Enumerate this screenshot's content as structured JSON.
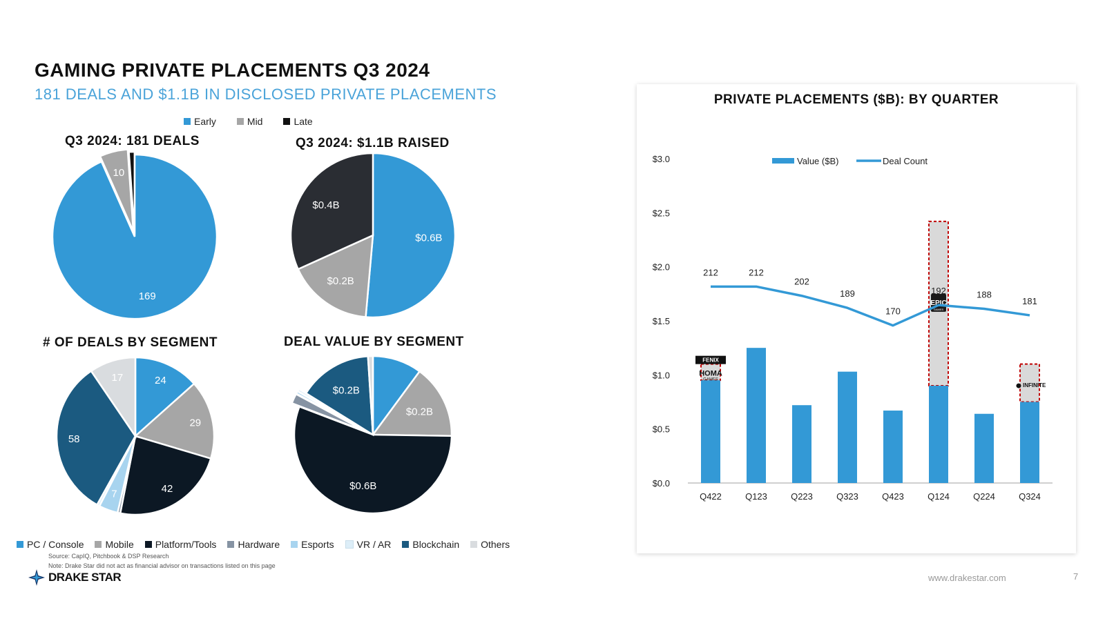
{
  "header": {
    "title": "GAMING PRIVATE PLACEMENTS Q3 2024",
    "subtitle": "181 DEALS AND $1.1B IN DISCLOSED PRIVATE PLACEMENTS"
  },
  "stage_legend": [
    {
      "label": "Early",
      "color": "#3399d6"
    },
    {
      "label": "Mid",
      "color": "#a6a6a6"
    },
    {
      "label": "Late",
      "color": "#111111"
    }
  ],
  "segment_legend": [
    {
      "label": "PC / Console",
      "color": "#3399d6"
    },
    {
      "label": "Mobile",
      "color": "#a6a6a6"
    },
    {
      "label": "Platform/Tools",
      "color": "#0c1824"
    },
    {
      "label": "Hardware",
      "color": "#8693a3"
    },
    {
      "label": "Esports",
      "color": "#a8d4ef"
    },
    {
      "label": "VR / AR",
      "color": "#ddeef8"
    },
    {
      "label": "Blockchain",
      "color": "#1b5a80"
    },
    {
      "label": "Others",
      "color": "#d9dcdf"
    }
  ],
  "footer": {
    "source": "Source: CapIQ, Pitchbook & DSP Research",
    "note": "Note: Drake Star did not act as financial advisor on transactions listed on this page",
    "logo": "DRAKE STAR",
    "url": "www.drakestar.com",
    "page": "7"
  },
  "chart_data": [
    {
      "type": "pie",
      "title": "Q3 2024: 181 DEALS",
      "slices": [
        {
          "name": "Early",
          "value": 169,
          "label": "169",
          "color": "#3399d6"
        },
        {
          "name": "Mid",
          "value": 10,
          "label": "10",
          "color": "#a6a6a6"
        },
        {
          "name": "Late",
          "value": 2,
          "label": "",
          "color": "#111111"
        }
      ]
    },
    {
      "type": "pie",
      "title": "Q3 2024: $1.1B RAISED",
      "slices": [
        {
          "name": "Early",
          "value": 0.55,
          "label": "$0.6B",
          "color": "#3399d6"
        },
        {
          "name": "Mid",
          "value": 0.18,
          "label": "$0.2B",
          "color": "#a6a6a6"
        },
        {
          "name": "Late",
          "value": 0.34,
          "label": "$0.4B",
          "color": "#2a2d33"
        }
      ]
    },
    {
      "type": "pie",
      "title": "# OF DEALS BY SEGMENT",
      "slices": [
        {
          "name": "PC / Console",
          "value": 24,
          "label": "24",
          "color": "#3399d6"
        },
        {
          "name": "Mobile",
          "value": 29,
          "label": "29",
          "color": "#a6a6a6"
        },
        {
          "name": "Platform/Tools",
          "value": 42,
          "label": "42",
          "color": "#0c1824"
        },
        {
          "name": "Hardware",
          "value": 1,
          "label": "",
          "color": "#8693a3"
        },
        {
          "name": "Esports",
          "value": 7,
          "label": "7",
          "color": "#a8d4ef"
        },
        {
          "name": "VR / AR",
          "value": 1,
          "label": "",
          "color": "#ddeef8"
        },
        {
          "name": "Blockchain",
          "value": 58,
          "label": "58",
          "color": "#1b5a80"
        },
        {
          "name": "Others",
          "value": 17,
          "label": "17",
          "color": "#d9dcdf"
        }
      ]
    },
    {
      "type": "pie",
      "title": "DEAL VALUE BY SEGMENT",
      "slices": [
        {
          "name": "PC / Console",
          "value": 0.1,
          "label": "",
          "color": "#3399d6"
        },
        {
          "name": "Mobile",
          "value": 0.15,
          "label": "$0.2B",
          "color": "#a6a6a6"
        },
        {
          "name": "Platform/Tools",
          "value": 0.55,
          "label": "$0.6B",
          "color": "#0c1824"
        },
        {
          "name": "Hardware",
          "value": 0.02,
          "label": "",
          "color": "#8693a3"
        },
        {
          "name": "Esports",
          "value": 0.005,
          "label": "",
          "color": "#a8d4ef"
        },
        {
          "name": "VR / AR",
          "value": 0.005,
          "label": "",
          "color": "#ddeef8"
        },
        {
          "name": "Blockchain",
          "value": 0.15,
          "label": "$0.2B",
          "color": "#1b5a80"
        },
        {
          "name": "Others",
          "value": 0.01,
          "label": "",
          "color": "#d9dcdf"
        }
      ]
    },
    {
      "type": "bar+line",
      "title": "PRIVATE PLACEMENTS ($B): BY QUARTER",
      "categories": [
        "Q422",
        "Q123",
        "Q223",
        "Q323",
        "Q423",
        "Q124",
        "Q224",
        "Q324"
      ],
      "series": [
        {
          "name": "Value ($B)",
          "type": "bar",
          "color": "#3399d6",
          "values": [
            0.95,
            1.25,
            0.72,
            1.03,
            0.67,
            0.9,
            0.64,
            0.75
          ]
        },
        {
          "name": "Deal Count",
          "type": "line",
          "color": "#3399d6",
          "values": [
            212,
            212,
            202,
            189,
            170,
            192,
            188,
            181
          ]
        }
      ],
      "highlights": [
        {
          "category": "Q422",
          "from": 0.95,
          "to": 1.1,
          "logos": [
            "FENIX",
            "HOMA",
            "GAMES"
          ]
        },
        {
          "category": "Q124",
          "from": 0.9,
          "to": 2.42,
          "logos": [
            "EPIC",
            "GAMES"
          ]
        },
        {
          "category": "Q324",
          "from": 0.75,
          "to": 1.1,
          "logos": [
            "INFINITE"
          ]
        }
      ],
      "y_ticks": [
        "$0.0",
        "$0.5",
        "$1.0",
        "$1.5",
        "$2.0",
        "$2.5",
        "$3.0"
      ],
      "ylim": [
        0,
        3.0
      ],
      "line_ylim": [
        0,
        350
      ],
      "legend_position": "top"
    }
  ]
}
